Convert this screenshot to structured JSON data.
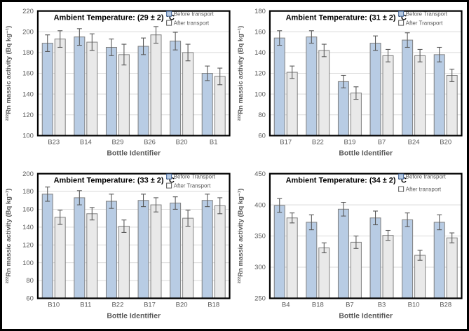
{
  "style": {
    "before_fill": "#b8cce4",
    "before_stroke": "#7f7f7f",
    "after_fill": "#e9e9e9",
    "after_stroke": "#7f7f7f",
    "error_color": "#595959",
    "grid_color": "#d9d9d9",
    "text_color": "#595959",
    "title_color": "#000000",
    "frame_color": "#000000",
    "legend_before_stroke": "#44669a",
    "legend_after_stroke": "#595959"
  },
  "chart_data": [
    {
      "type": "bar",
      "title": "Ambient Temperature: (29 ± 2) °C",
      "xlabel": "Bottle Identifier",
      "ylabel": "²²²Rn massic activity (Bq kg⁻¹)",
      "ylim": [
        100,
        220
      ],
      "ytick_step": 20,
      "grid": true,
      "legend_position": "top-right",
      "categories": [
        "B23",
        "B14",
        "B29",
        "B26",
        "B20",
        "B1"
      ],
      "series": [
        {
          "name": "Before transport",
          "values": [
            189,
            195,
            185,
            186,
            191,
            160
          ],
          "errors": [
            8,
            8,
            8,
            8,
            8.5,
            7
          ]
        },
        {
          "name": "After transport",
          "values": [
            193,
            190,
            178,
            197,
            180,
            157
          ],
          "errors": [
            8,
            8,
            10,
            8,
            8,
            8
          ]
        }
      ]
    },
    {
      "type": "bar",
      "title": "Ambient Temperature: (31 ± 2) °C",
      "xlabel": "Bottle Identifier",
      "ylabel": "²²²Rn massic activity (Bq kg⁻¹)",
      "ylim": [
        60,
        180
      ],
      "ytick_step": 20,
      "grid": true,
      "legend_position": "top-right",
      "categories": [
        "B17",
        "B22",
        "B19",
        "B7",
        "B24",
        "B20"
      ],
      "series": [
        {
          "name": "Before Transport",
          "values": [
            154,
            155,
            112,
            149,
            152,
            138
          ],
          "errors": [
            7,
            6,
            6,
            7,
            7,
            7
          ]
        },
        {
          "name": "After Transport",
          "values": [
            121,
            142,
            101,
            137,
            137,
            118
          ],
          "errors": [
            6,
            6,
            6,
            6,
            6,
            6
          ]
        }
      ]
    },
    {
      "type": "bar",
      "title": "Ambient Temperature: (33 ± 2) °C",
      "xlabel": "Bottle Identifier",
      "ylabel": "²²²Rn massic activity (Bq kg⁻¹)",
      "ylim": [
        60,
        200
      ],
      "ytick_step": 20,
      "grid": true,
      "legend_position": "top-right",
      "categories": [
        "B10",
        "B11",
        "B22",
        "B17",
        "B20",
        "B18"
      ],
      "series": [
        {
          "name": "Before Transport",
          "values": [
            177,
            173,
            169,
            170,
            167,
            170
          ],
          "errors": [
            8,
            8,
            8,
            7,
            7,
            7
          ]
        },
        {
          "name": "After Transport",
          "values": [
            151,
            155,
            141,
            165,
            150,
            164
          ],
          "errors": [
            8,
            7,
            7,
            8,
            9,
            9
          ]
        }
      ]
    },
    {
      "type": "bar",
      "title": "Ambient Temperature: (34 ± 2) °C",
      "xlabel": "Bottle Identifier",
      "ylabel": "²²²Rn massic activity (Bq kg⁻¹)",
      "ylim": [
        250,
        450
      ],
      "ytick_step": 50,
      "grid": true,
      "legend_position": "top-right",
      "categories": [
        "B4",
        "B18",
        "B7",
        "B3",
        "B10",
        "B28"
      ],
      "series": [
        {
          "name": "Before transport",
          "values": [
            399,
            372,
            393,
            379,
            376,
            372
          ],
          "errors": [
            11,
            12,
            11,
            11,
            11,
            12
          ]
        },
        {
          "name": "After transport",
          "values": [
            379,
            331,
            340,
            351,
            319,
            347
          ],
          "errors": [
            8,
            8,
            10,
            8,
            8,
            8
          ]
        }
      ]
    }
  ]
}
